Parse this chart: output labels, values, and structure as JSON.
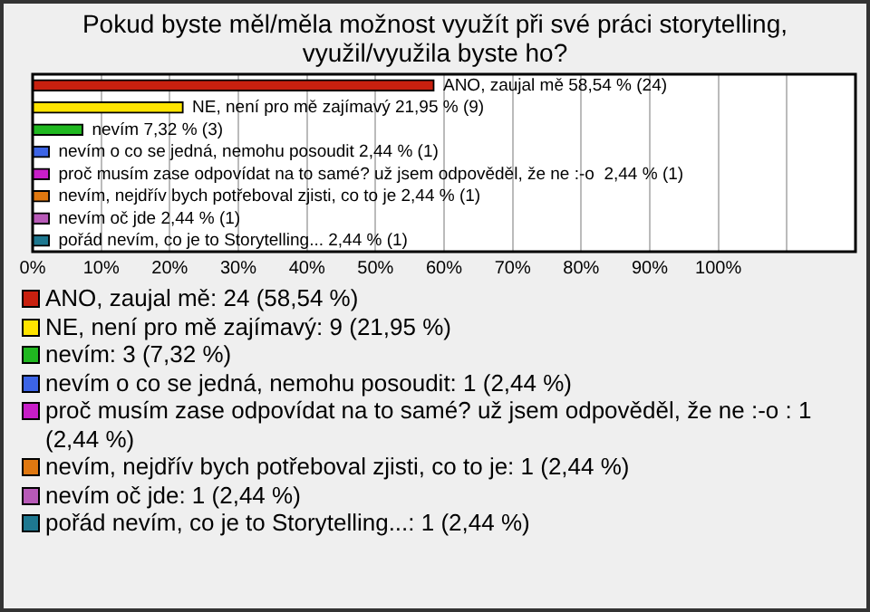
{
  "chart_data": {
    "type": "bar",
    "orientation": "horizontal",
    "stacked": true,
    "title": "Pokud byste měl/měla možnost využít při své práci storytelling, využil/využila byste ho?",
    "categories": [
      null,
      null,
      null,
      null,
      null,
      null,
      null,
      null
    ],
    "xlim": [
      0,
      120
    ],
    "xticks": [
      {
        "value": 0,
        "label": "0%"
      },
      {
        "value": 10,
        "label": "10%"
      },
      {
        "value": 20,
        "label": "20%"
      },
      {
        "value": 30,
        "label": "30%"
      },
      {
        "value": 40,
        "label": "40%"
      },
      {
        "value": 50,
        "label": "50%"
      },
      {
        "value": 60,
        "label": "60%"
      },
      {
        "value": 70,
        "label": "70%"
      },
      {
        "value": 80,
        "label": "80%"
      },
      {
        "value": 90,
        "label": "90%"
      },
      {
        "value": 100,
        "label": "100%"
      },
      {
        "value": 110,
        "label": null
      }
    ],
    "grid": "x",
    "legend": "bottom",
    "series": [
      {
        "name": "ANO, zaujal mě: 24 (58,54 %)",
        "color": "#c8200f",
        "values": [
          58.54,
          null,
          null,
          null,
          null,
          null,
          null,
          null
        ],
        "value_labels": [
          "ANO, zaujal mě 58,54 % (24)",
          null,
          null,
          null,
          null,
          null,
          null,
          null
        ]
      },
      {
        "name": "NE, není pro mě zajímavý: 9 (21,95 %)",
        "color": "#ffe400",
        "values": [
          null,
          21.95,
          null,
          null,
          null,
          null,
          null,
          null
        ],
        "value_labels": [
          null,
          "NE, není pro mě zajímavý 21,95 % (9)",
          null,
          null,
          null,
          null,
          null,
          null
        ]
      },
      {
        "name": "nevím: 3 (7,32 %)",
        "color": "#20b820",
        "values": [
          null,
          null,
          7.32,
          null,
          null,
          null,
          null,
          null
        ],
        "value_labels": [
          null,
          null,
          "nevím 7,32 % (3)",
          null,
          null,
          null,
          null,
          null
        ]
      },
      {
        "name": "nevím o co se jedná, nemohu posoudit: 1 (2,44 %)",
        "color": "#3c64e6",
        "values": [
          null,
          null,
          null,
          2.44,
          null,
          null,
          null,
          null
        ],
        "value_labels": [
          null,
          null,
          null,
          "nevím o co se jedná, nemohu posoudit 2,44 % (1)",
          null,
          null,
          null,
          null
        ]
      },
      {
        "name": "proč musím zase odpovídat na to samé? už jsem odpověděl, že ne :-o : 1 (2,44 %)",
        "color": "#c81ec8",
        "values": [
          null,
          null,
          null,
          null,
          2.44,
          null,
          null,
          null
        ],
        "value_labels": [
          null,
          null,
          null,
          null,
          "proč musím zase odpovídat na to samé? už jsem odpověděl, že ne :-o  2,44 % (1)",
          null,
          null,
          null
        ]
      },
      {
        "name": "nevím, nejdřív bych potřeboval zjisti, co to je: 1 (2,44 %)",
        "color": "#e07810",
        "values": [
          null,
          null,
          null,
          null,
          null,
          2.44,
          null,
          null
        ],
        "value_labels": [
          null,
          null,
          null,
          null,
          null,
          "nevím, nejdřív bych potřeboval zjisti, co to je 2,44 % (1)",
          null,
          null
        ]
      },
      {
        "name": "nevím oč jde: 1 (2,44 %)",
        "color": "#b85ab8",
        "values": [
          null,
          null,
          null,
          null,
          null,
          null,
          2.44,
          null
        ],
        "value_labels": [
          null,
          null,
          null,
          null,
          null,
          null,
          "nevím oč jde 2,44 % (1)",
          null
        ]
      },
      {
        "name": "pořád nevím, co je to Storytelling...: 1 (2,44 %)",
        "color": "#1e7890",
        "values": [
          null,
          null,
          null,
          null,
          null,
          null,
          null,
          2.44
        ],
        "value_labels": [
          null,
          null,
          null,
          null,
          null,
          null,
          null,
          "pořád nevím, co je to Storytelling... 2,44 % (1)"
        ]
      }
    ]
  }
}
